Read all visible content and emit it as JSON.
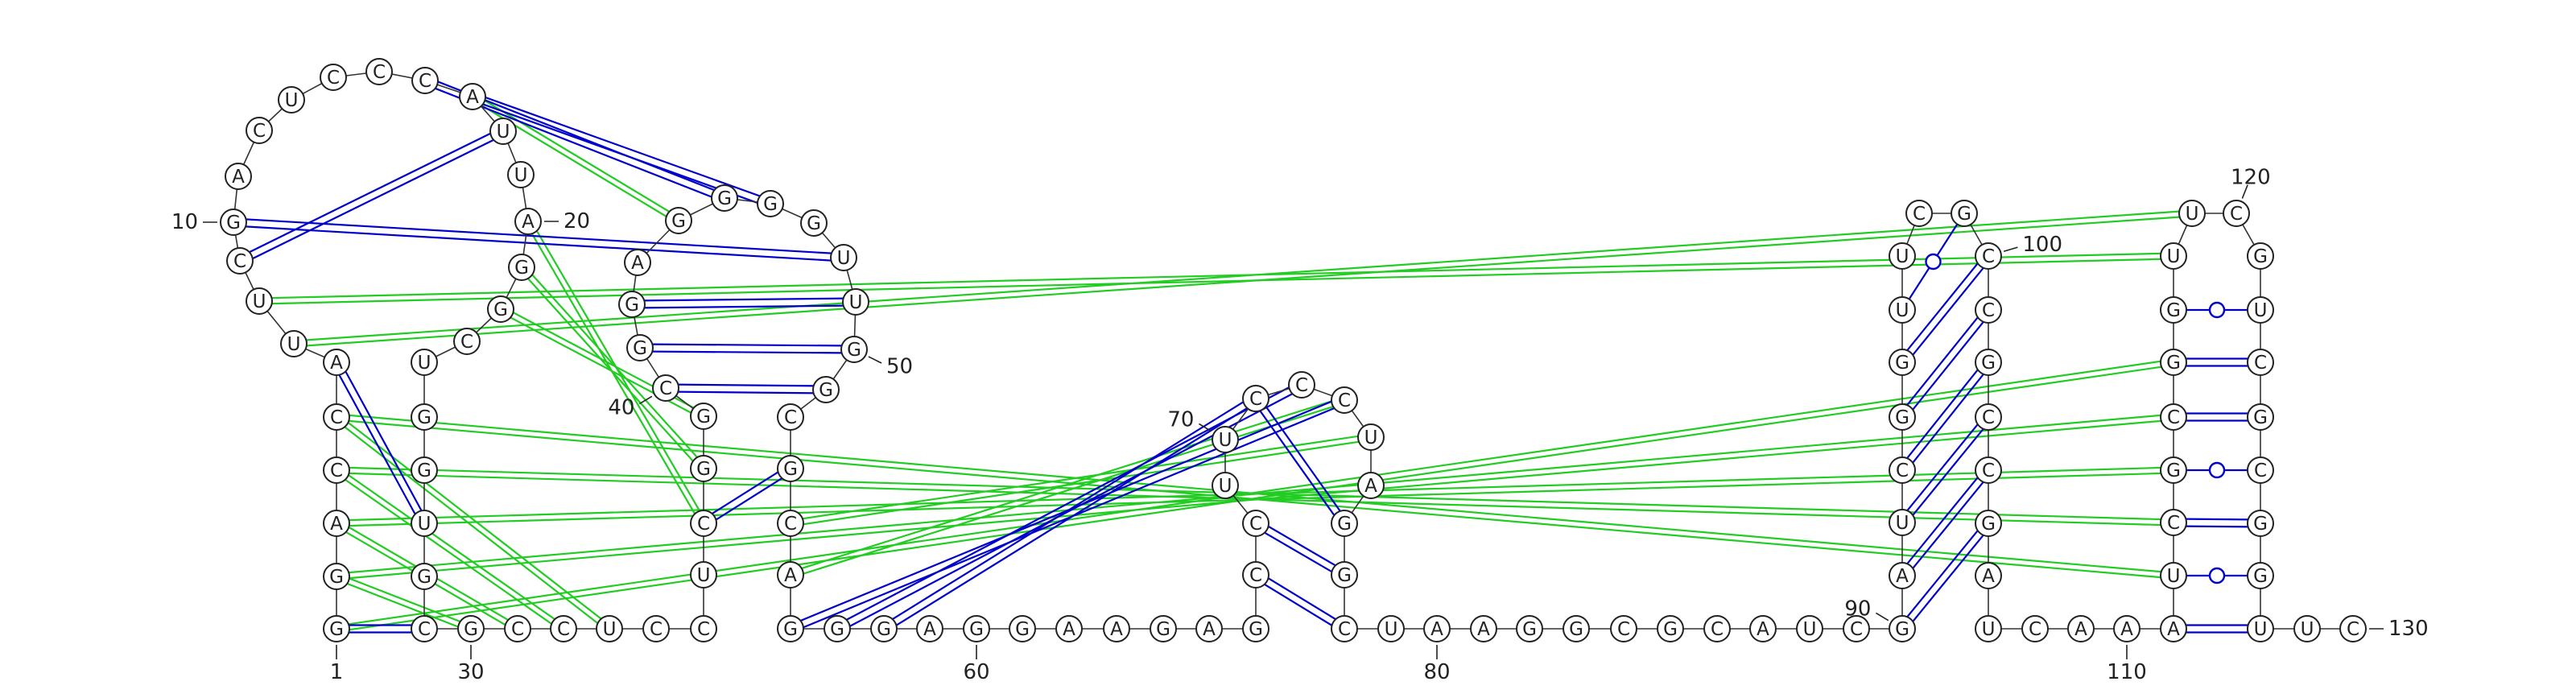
{
  "diagram": {
    "kind": "RNA secondary structure",
    "colors": {
      "canonical_pair": "#0000cc",
      "pseudoknot_pair": "#22cc22",
      "backbone": "#333333",
      "nucleotide_fill": "#ffffff",
      "nucleotide_stroke": "#222222",
      "text": "#222222"
    },
    "nucleotides": [
      {
        "n": 1,
        "b": "G"
      },
      {
        "n": 2,
        "b": "G"
      },
      {
        "n": 3,
        "b": "A"
      },
      {
        "n": 4,
        "b": "C"
      },
      {
        "n": 5,
        "b": "C"
      },
      {
        "n": 6,
        "b": "A"
      },
      {
        "n": 7,
        "b": "U"
      },
      {
        "n": 8,
        "b": "U"
      },
      {
        "n": 9,
        "b": "C"
      },
      {
        "n": 10,
        "b": "G"
      },
      {
        "n": 11,
        "b": "A"
      },
      {
        "n": 12,
        "b": "C"
      },
      {
        "n": 13,
        "b": "U"
      },
      {
        "n": 14,
        "b": "C"
      },
      {
        "n": 15,
        "b": "C"
      },
      {
        "n": 16,
        "b": "C"
      },
      {
        "n": 17,
        "b": "A"
      },
      {
        "n": 18,
        "b": "U"
      },
      {
        "n": 19,
        "b": "U"
      },
      {
        "n": 20,
        "b": "A"
      },
      {
        "n": 21,
        "b": "G"
      },
      {
        "n": 22,
        "b": "G"
      },
      {
        "n": 23,
        "b": "C"
      },
      {
        "n": 24,
        "b": "U"
      },
      {
        "n": 25,
        "b": "G"
      },
      {
        "n": 26,
        "b": "G"
      },
      {
        "n": 27,
        "b": "U"
      },
      {
        "n": 28,
        "b": "G"
      },
      {
        "n": 29,
        "b": "C"
      },
      {
        "n": 30,
        "b": "G"
      },
      {
        "n": 31,
        "b": "C"
      },
      {
        "n": 32,
        "b": "C"
      },
      {
        "n": 33,
        "b": "U"
      },
      {
        "n": 34,
        "b": "C"
      },
      {
        "n": 35,
        "b": "C"
      },
      {
        "n": 36,
        "b": "U"
      },
      {
        "n": 37,
        "b": "C"
      },
      {
        "n": 38,
        "b": "G"
      },
      {
        "n": 39,
        "b": "G"
      },
      {
        "n": 40,
        "b": "C"
      },
      {
        "n": 41,
        "b": "G"
      },
      {
        "n": 42,
        "b": "G"
      },
      {
        "n": 43,
        "b": "A"
      },
      {
        "n": 44,
        "b": "G"
      },
      {
        "n": 45,
        "b": "G"
      },
      {
        "n": 46,
        "b": "G"
      },
      {
        "n": 47,
        "b": "G"
      },
      {
        "n": 48,
        "b": "U"
      },
      {
        "n": 49,
        "b": "U"
      },
      {
        "n": 50,
        "b": "G"
      },
      {
        "n": 51,
        "b": "G"
      },
      {
        "n": 52,
        "b": "C"
      },
      {
        "n": 53,
        "b": "G"
      },
      {
        "n": 54,
        "b": "C"
      },
      {
        "n": 55,
        "b": "A"
      },
      {
        "n": 56,
        "b": "G"
      },
      {
        "n": 57,
        "b": "G"
      },
      {
        "n": 58,
        "b": "G"
      },
      {
        "n": 59,
        "b": "A"
      },
      {
        "n": 60,
        "b": "G"
      },
      {
        "n": 61,
        "b": "G"
      },
      {
        "n": 62,
        "b": "A"
      },
      {
        "n": 63,
        "b": "A"
      },
      {
        "n": 64,
        "b": "G"
      },
      {
        "n": 65,
        "b": "A"
      },
      {
        "n": 66,
        "b": "G"
      },
      {
        "n": 67,
        "b": "C"
      },
      {
        "n": 68,
        "b": "C"
      },
      {
        "n": 69,
        "b": "U"
      },
      {
        "n": 70,
        "b": "U"
      },
      {
        "n": 71,
        "b": "C"
      },
      {
        "n": 72,
        "b": "C"
      },
      {
        "n": 73,
        "b": "C"
      },
      {
        "n": 74,
        "b": "U"
      },
      {
        "n": 75,
        "b": "A"
      },
      {
        "n": 76,
        "b": "G"
      },
      {
        "n": 77,
        "b": "G"
      },
      {
        "n": 78,
        "b": "C"
      },
      {
        "n": 79,
        "b": "U"
      },
      {
        "n": 80,
        "b": "A"
      },
      {
        "n": 81,
        "b": "A"
      },
      {
        "n": 82,
        "b": "G"
      },
      {
        "n": 83,
        "b": "G"
      },
      {
        "n": 84,
        "b": "C"
      },
      {
        "n": 85,
        "b": "G"
      },
      {
        "n": 86,
        "b": "C"
      },
      {
        "n": 87,
        "b": "A"
      },
      {
        "n": 88,
        "b": "U"
      },
      {
        "n": 89,
        "b": "C"
      },
      {
        "n": 90,
        "b": "G"
      },
      {
        "n": 91,
        "b": "A"
      },
      {
        "n": 92,
        "b": "U"
      },
      {
        "n": 93,
        "b": "C"
      },
      {
        "n": 94,
        "b": "G"
      },
      {
        "n": 95,
        "b": "G"
      },
      {
        "n": 96,
        "b": "U"
      },
      {
        "n": 97,
        "b": "U"
      },
      {
        "n": 98,
        "b": "C"
      },
      {
        "n": 99,
        "b": "G"
      },
      {
        "n": 100,
        "b": "C"
      },
      {
        "n": 101,
        "b": "C"
      },
      {
        "n": 102,
        "b": "G"
      },
      {
        "n": 103,
        "b": "C"
      },
      {
        "n": 104,
        "b": "C"
      },
      {
        "n": 105,
        "b": "G"
      },
      {
        "n": 106,
        "b": "A"
      },
      {
        "n": 107,
        "b": "U"
      },
      {
        "n": 108,
        "b": "C"
      },
      {
        "n": 109,
        "b": "A"
      },
      {
        "n": 110,
        "b": "A"
      },
      {
        "n": 111,
        "b": "A"
      },
      {
        "n": 112,
        "b": "U"
      },
      {
        "n": 113,
        "b": "C"
      },
      {
        "n": 114,
        "b": "G"
      },
      {
        "n": 115,
        "b": "C"
      },
      {
        "n": 116,
        "b": "G"
      },
      {
        "n": 117,
        "b": "G"
      },
      {
        "n": 118,
        "b": "U"
      },
      {
        "n": 119,
        "b": "U"
      },
      {
        "n": 120,
        "b": "C"
      },
      {
        "n": 121,
        "b": "G"
      },
      {
        "n": 122,
        "b": "U"
      },
      {
        "n": 123,
        "b": "C"
      },
      {
        "n": 124,
        "b": "G"
      },
      {
        "n": 125,
        "b": "C"
      },
      {
        "n": 126,
        "b": "G"
      },
      {
        "n": 127,
        "b": "G"
      },
      {
        "n": 128,
        "b": "U"
      },
      {
        "n": 129,
        "b": "U"
      },
      {
        "n": 130,
        "b": "C"
      }
    ],
    "canonical_pairs": [
      [
        1,
        29
      ],
      [
        6,
        27
      ],
      [
        37,
        53
      ],
      [
        40,
        51
      ],
      [
        41,
        50
      ],
      [
        42,
        49
      ],
      [
        67,
        78
      ],
      [
        68,
        77
      ],
      [
        71,
        76
      ],
      [
        90,
        105
      ],
      [
        91,
        104
      ],
      [
        92,
        103
      ],
      [
        93,
        102
      ],
      [
        94,
        101
      ],
      [
        95,
        100
      ],
      [
        111,
        128
      ],
      [
        113,
        126
      ],
      [
        114,
        125
      ],
      [
        115,
        124
      ],
      [
        116,
        123
      ],
      [
        9,
        18
      ],
      [
        10,
        48
      ],
      [
        16,
        45
      ],
      [
        17,
        46
      ],
      [
        73,
        56
      ],
      [
        72,
        57
      ],
      [
        71,
        58
      ]
    ],
    "wobble_pairs": [
      [
        96,
        99
      ],
      [
        112,
        127
      ],
      [
        114,
        125
      ],
      [
        117,
        122
      ]
    ],
    "pseudoknot_pairs": [
      [
        2,
        30
      ],
      [
        3,
        31
      ],
      [
        4,
        32
      ],
      [
        5,
        33
      ],
      [
        1,
        116
      ],
      [
        2,
        115
      ],
      [
        3,
        114
      ],
      [
        4,
        113
      ],
      [
        5,
        112
      ],
      [
        7,
        119
      ],
      [
        8,
        118
      ],
      [
        20,
        37
      ],
      [
        21,
        38
      ],
      [
        22,
        39
      ],
      [
        17,
        44
      ],
      [
        73,
        55
      ],
      [
        74,
        54
      ]
    ],
    "position_labels": [
      {
        "n": 1,
        "text": "1"
      },
      {
        "n": 10,
        "text": "10"
      },
      {
        "n": 20,
        "text": "20"
      },
      {
        "n": 30,
        "text": "30"
      },
      {
        "n": 40,
        "text": "40"
      },
      {
        "n": 50,
        "text": "50"
      },
      {
        "n": 60,
        "text": "60"
      },
      {
        "n": 70,
        "text": "70"
      },
      {
        "n": 80,
        "text": "80"
      },
      {
        "n": 90,
        "text": "90"
      },
      {
        "n": 100,
        "text": "100"
      },
      {
        "n": 110,
        "text": "110"
      },
      {
        "n": 120,
        "text": "120"
      },
      {
        "n": 130,
        "text": "130"
      }
    ]
  }
}
